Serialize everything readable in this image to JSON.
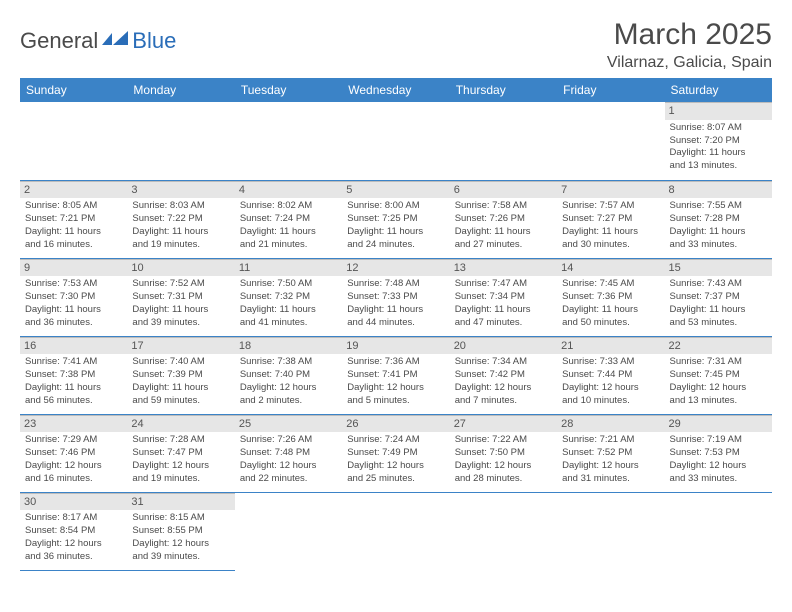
{
  "logo": {
    "part1": "General",
    "part2": "Blue"
  },
  "title": "March 2025",
  "location": "Vilarnaz, Galicia, Spain",
  "colors": {
    "header_bg": "#3b83c7",
    "header_fg": "#ffffff",
    "daynum_bg": "#e6e6e6",
    "border": "#3b83c7",
    "text": "#4a4a4a",
    "logo_blue": "#2a6db8"
  },
  "weekdays": [
    "Sunday",
    "Monday",
    "Tuesday",
    "Wednesday",
    "Thursday",
    "Friday",
    "Saturday"
  ],
  "weeks": [
    [
      null,
      null,
      null,
      null,
      null,
      null,
      {
        "n": "1",
        "sr": "Sunrise: 8:07 AM",
        "ss": "Sunset: 7:20 PM",
        "d1": "Daylight: 11 hours",
        "d2": "and 13 minutes."
      }
    ],
    [
      {
        "n": "2",
        "sr": "Sunrise: 8:05 AM",
        "ss": "Sunset: 7:21 PM",
        "d1": "Daylight: 11 hours",
        "d2": "and 16 minutes."
      },
      {
        "n": "3",
        "sr": "Sunrise: 8:03 AM",
        "ss": "Sunset: 7:22 PM",
        "d1": "Daylight: 11 hours",
        "d2": "and 19 minutes."
      },
      {
        "n": "4",
        "sr": "Sunrise: 8:02 AM",
        "ss": "Sunset: 7:24 PM",
        "d1": "Daylight: 11 hours",
        "d2": "and 21 minutes."
      },
      {
        "n": "5",
        "sr": "Sunrise: 8:00 AM",
        "ss": "Sunset: 7:25 PM",
        "d1": "Daylight: 11 hours",
        "d2": "and 24 minutes."
      },
      {
        "n": "6",
        "sr": "Sunrise: 7:58 AM",
        "ss": "Sunset: 7:26 PM",
        "d1": "Daylight: 11 hours",
        "d2": "and 27 minutes."
      },
      {
        "n": "7",
        "sr": "Sunrise: 7:57 AM",
        "ss": "Sunset: 7:27 PM",
        "d1": "Daylight: 11 hours",
        "d2": "and 30 minutes."
      },
      {
        "n": "8",
        "sr": "Sunrise: 7:55 AM",
        "ss": "Sunset: 7:28 PM",
        "d1": "Daylight: 11 hours",
        "d2": "and 33 minutes."
      }
    ],
    [
      {
        "n": "9",
        "sr": "Sunrise: 7:53 AM",
        "ss": "Sunset: 7:30 PM",
        "d1": "Daylight: 11 hours",
        "d2": "and 36 minutes."
      },
      {
        "n": "10",
        "sr": "Sunrise: 7:52 AM",
        "ss": "Sunset: 7:31 PM",
        "d1": "Daylight: 11 hours",
        "d2": "and 39 minutes."
      },
      {
        "n": "11",
        "sr": "Sunrise: 7:50 AM",
        "ss": "Sunset: 7:32 PM",
        "d1": "Daylight: 11 hours",
        "d2": "and 41 minutes."
      },
      {
        "n": "12",
        "sr": "Sunrise: 7:48 AM",
        "ss": "Sunset: 7:33 PM",
        "d1": "Daylight: 11 hours",
        "d2": "and 44 minutes."
      },
      {
        "n": "13",
        "sr": "Sunrise: 7:47 AM",
        "ss": "Sunset: 7:34 PM",
        "d1": "Daylight: 11 hours",
        "d2": "and 47 minutes."
      },
      {
        "n": "14",
        "sr": "Sunrise: 7:45 AM",
        "ss": "Sunset: 7:36 PM",
        "d1": "Daylight: 11 hours",
        "d2": "and 50 minutes."
      },
      {
        "n": "15",
        "sr": "Sunrise: 7:43 AM",
        "ss": "Sunset: 7:37 PM",
        "d1": "Daylight: 11 hours",
        "d2": "and 53 minutes."
      }
    ],
    [
      {
        "n": "16",
        "sr": "Sunrise: 7:41 AM",
        "ss": "Sunset: 7:38 PM",
        "d1": "Daylight: 11 hours",
        "d2": "and 56 minutes."
      },
      {
        "n": "17",
        "sr": "Sunrise: 7:40 AM",
        "ss": "Sunset: 7:39 PM",
        "d1": "Daylight: 11 hours",
        "d2": "and 59 minutes."
      },
      {
        "n": "18",
        "sr": "Sunrise: 7:38 AM",
        "ss": "Sunset: 7:40 PM",
        "d1": "Daylight: 12 hours",
        "d2": "and 2 minutes."
      },
      {
        "n": "19",
        "sr": "Sunrise: 7:36 AM",
        "ss": "Sunset: 7:41 PM",
        "d1": "Daylight: 12 hours",
        "d2": "and 5 minutes."
      },
      {
        "n": "20",
        "sr": "Sunrise: 7:34 AM",
        "ss": "Sunset: 7:42 PM",
        "d1": "Daylight: 12 hours",
        "d2": "and 7 minutes."
      },
      {
        "n": "21",
        "sr": "Sunrise: 7:33 AM",
        "ss": "Sunset: 7:44 PM",
        "d1": "Daylight: 12 hours",
        "d2": "and 10 minutes."
      },
      {
        "n": "22",
        "sr": "Sunrise: 7:31 AM",
        "ss": "Sunset: 7:45 PM",
        "d1": "Daylight: 12 hours",
        "d2": "and 13 minutes."
      }
    ],
    [
      {
        "n": "23",
        "sr": "Sunrise: 7:29 AM",
        "ss": "Sunset: 7:46 PM",
        "d1": "Daylight: 12 hours",
        "d2": "and 16 minutes."
      },
      {
        "n": "24",
        "sr": "Sunrise: 7:28 AM",
        "ss": "Sunset: 7:47 PM",
        "d1": "Daylight: 12 hours",
        "d2": "and 19 minutes."
      },
      {
        "n": "25",
        "sr": "Sunrise: 7:26 AM",
        "ss": "Sunset: 7:48 PM",
        "d1": "Daylight: 12 hours",
        "d2": "and 22 minutes."
      },
      {
        "n": "26",
        "sr": "Sunrise: 7:24 AM",
        "ss": "Sunset: 7:49 PM",
        "d1": "Daylight: 12 hours",
        "d2": "and 25 minutes."
      },
      {
        "n": "27",
        "sr": "Sunrise: 7:22 AM",
        "ss": "Sunset: 7:50 PM",
        "d1": "Daylight: 12 hours",
        "d2": "and 28 minutes."
      },
      {
        "n": "28",
        "sr": "Sunrise: 7:21 AM",
        "ss": "Sunset: 7:52 PM",
        "d1": "Daylight: 12 hours",
        "d2": "and 31 minutes."
      },
      {
        "n": "29",
        "sr": "Sunrise: 7:19 AM",
        "ss": "Sunset: 7:53 PM",
        "d1": "Daylight: 12 hours",
        "d2": "and 33 minutes."
      }
    ],
    [
      {
        "n": "30",
        "sr": "Sunrise: 8:17 AM",
        "ss": "Sunset: 8:54 PM",
        "d1": "Daylight: 12 hours",
        "d2": "and 36 minutes."
      },
      {
        "n": "31",
        "sr": "Sunrise: 8:15 AM",
        "ss": "Sunset: 8:55 PM",
        "d1": "Daylight: 12 hours",
        "d2": "and 39 minutes."
      },
      null,
      null,
      null,
      null,
      null
    ]
  ]
}
